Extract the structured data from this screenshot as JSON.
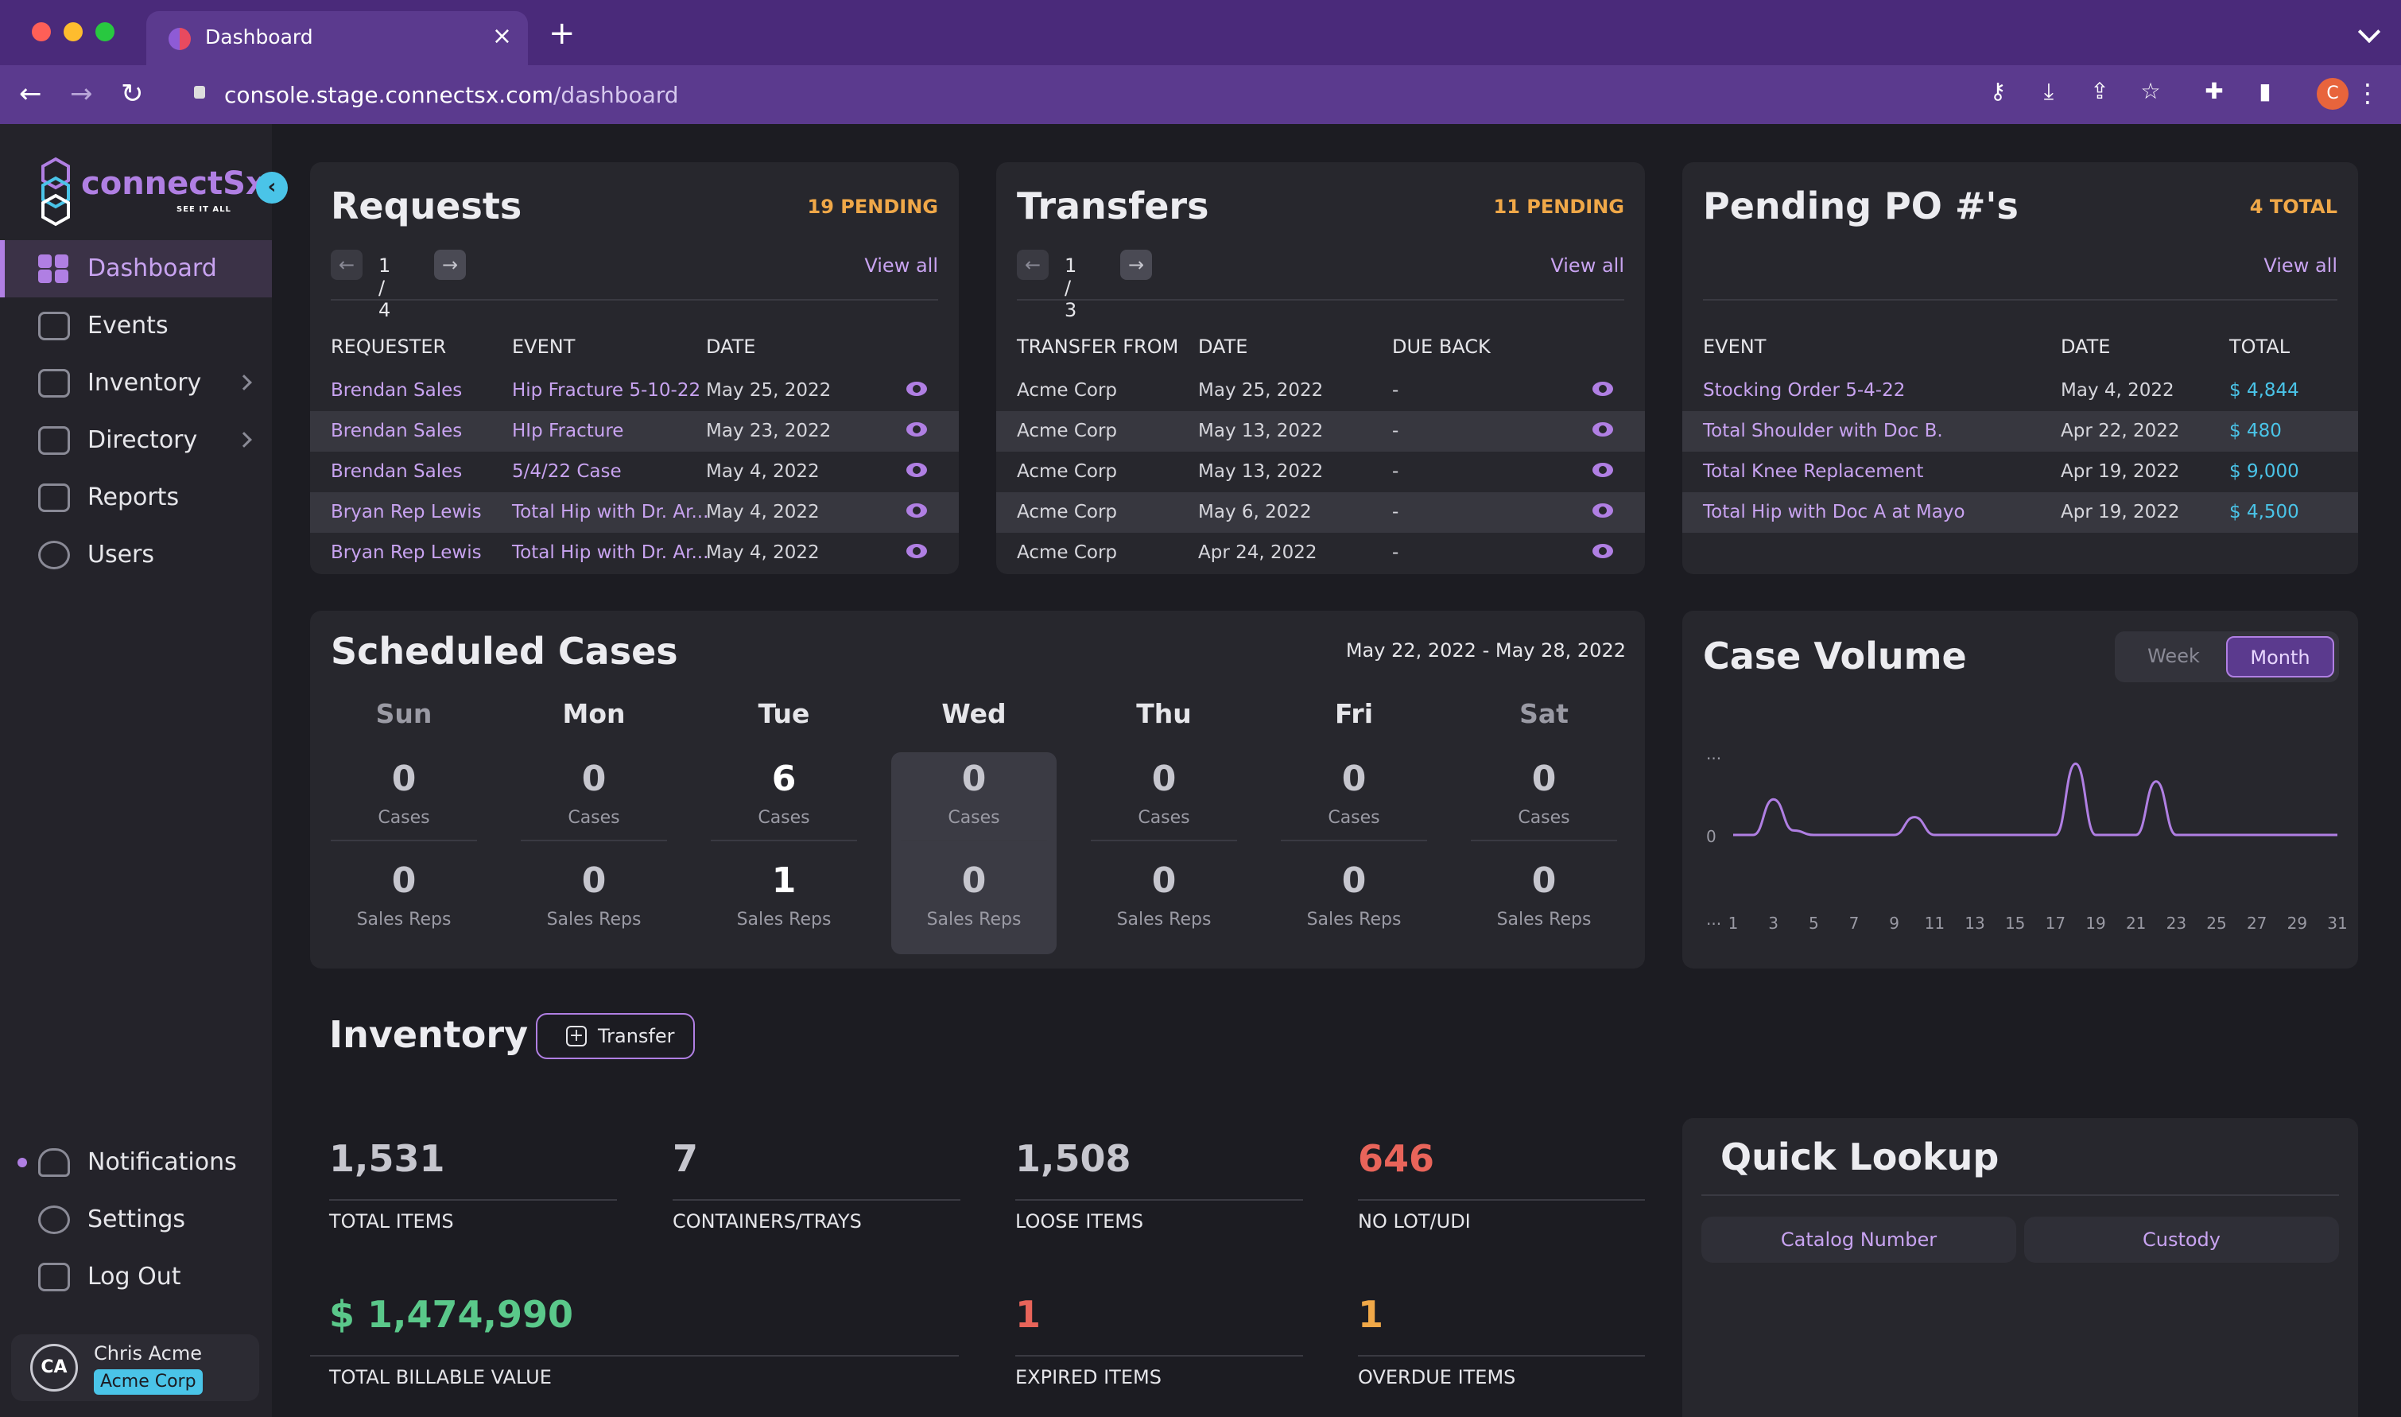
{
  "browser": {
    "tab_title": "Dashboard",
    "url_host": "console.stage.connectsx.com",
    "url_path": "/dashboard",
    "profile_initial": "C"
  },
  "sidebar": {
    "logo_text": "connectSx",
    "logo_tagline": "SEE IT ALL",
    "items": [
      {
        "label": "Dashboard",
        "icon": "grid-icon",
        "active": true
      },
      {
        "label": "Events",
        "icon": "calendar-icon"
      },
      {
        "label": "Inventory",
        "icon": "bag-icon",
        "expandable": true
      },
      {
        "label": "Directory",
        "icon": "book-icon",
        "expandable": true
      },
      {
        "label": "Reports",
        "icon": "download-icon"
      },
      {
        "label": "Users",
        "icon": "users-icon"
      }
    ],
    "bottom_items": [
      {
        "label": "Notifications",
        "icon": "bell-icon"
      },
      {
        "label": "Settings",
        "icon": "gear-icon"
      },
      {
        "label": "Log Out",
        "icon": "logout-icon"
      }
    ],
    "user": {
      "initials": "CA",
      "name": "Chris Acme",
      "org": "Acme Corp"
    }
  },
  "requests": {
    "title": "Requests",
    "badge": "19 PENDING",
    "pager": "1 / 4",
    "view_all": "View all",
    "headers": [
      "REQUESTER",
      "EVENT",
      "DATE"
    ],
    "rows": [
      {
        "requester": "Brendan Sales",
        "event": "Hip Fracture 5-10-22",
        "date": "May 25, 2022"
      },
      {
        "requester": "Brendan Sales",
        "event": "HIp Fracture",
        "date": "May 23, 2022"
      },
      {
        "requester": "Brendan Sales",
        "event": "5/4/22 Case",
        "date": "May 4, 2022"
      },
      {
        "requester": "Bryan Rep Lewis",
        "event": "Total Hip with Dr. Ar...",
        "date": "May 4, 2022"
      },
      {
        "requester": "Bryan Rep Lewis",
        "event": "Total Hip with Dr. Ar...",
        "date": "May 4, 2022"
      }
    ]
  },
  "transfers": {
    "title": "Transfers",
    "badge": "11 PENDING",
    "pager": "1 / 3",
    "view_all": "View all",
    "headers": [
      "TRANSFER FROM",
      "DATE",
      "DUE BACK"
    ],
    "rows": [
      {
        "from": "Acme Corp",
        "date": "May 25, 2022",
        "due": "-"
      },
      {
        "from": "Acme Corp",
        "date": "May 13, 2022",
        "due": "-"
      },
      {
        "from": "Acme Corp",
        "date": "May 13, 2022",
        "due": "-"
      },
      {
        "from": "Acme Corp",
        "date": "May 6, 2022",
        "due": "-"
      },
      {
        "from": "Acme Corp",
        "date": "Apr 24, 2022",
        "due": "-"
      }
    ]
  },
  "pending_po": {
    "title": "Pending PO #'s",
    "badge": "4 TOTAL",
    "view_all": "View all",
    "headers": [
      "EVENT",
      "DATE",
      "TOTAL"
    ],
    "rows": [
      {
        "event": "Stocking Order 5-4-22",
        "date": "May 4, 2022",
        "total": "$ 4,844"
      },
      {
        "event": "Total Shoulder with Doc B.",
        "date": "Apr 22, 2022",
        "total": "$ 480"
      },
      {
        "event": "Total Knee Replacement",
        "date": "Apr 19, 2022",
        "total": "$ 9,000"
      },
      {
        "event": "Total Hip with Doc A at Mayo",
        "date": "Apr 19, 2022",
        "total": "$ 4,500"
      }
    ]
  },
  "scheduled": {
    "title": "Scheduled Cases",
    "date_range": "May 22, 2022 - May 28, 2022",
    "cases_label": "Cases",
    "reps_label": "Sales Reps",
    "days": [
      {
        "name": "Sun",
        "cases": "0",
        "reps": "0"
      },
      {
        "name": "Mon",
        "cases": "0",
        "reps": "0"
      },
      {
        "name": "Tue",
        "cases": "6",
        "reps": "1"
      },
      {
        "name": "Wed",
        "cases": "0",
        "reps": "0",
        "today": true
      },
      {
        "name": "Thu",
        "cases": "0",
        "reps": "0"
      },
      {
        "name": "Fri",
        "cases": "0",
        "reps": "0"
      },
      {
        "name": "Sat",
        "cases": "0",
        "reps": "0"
      }
    ]
  },
  "case_volume": {
    "title": "Case Volume",
    "toggle": [
      "Week",
      "Month"
    ],
    "active_toggle": "Month",
    "y_tick_top": "...",
    "y_tick_zero": "0",
    "y_tick_bottom": "...",
    "chart_data": {
      "type": "line",
      "x": [
        1,
        3,
        5,
        7,
        9,
        11,
        13,
        15,
        17,
        19,
        21,
        23,
        25,
        27,
        29,
        31
      ],
      "x_tick_labels": [
        "1",
        "3",
        "5",
        "7",
        "9",
        "11",
        "13",
        "15",
        "17",
        "19",
        "21",
        "23",
        "25",
        "27",
        "29",
        "31"
      ],
      "series_points": [
        [
          1,
          0
        ],
        [
          2,
          0
        ],
        [
          3,
          0.8
        ],
        [
          4,
          0.1
        ],
        [
          5,
          0
        ],
        [
          6,
          0
        ],
        [
          7,
          0
        ],
        [
          8,
          0
        ],
        [
          9,
          0
        ],
        [
          10,
          0.4
        ],
        [
          11,
          0
        ],
        [
          12,
          0
        ],
        [
          13,
          0
        ],
        [
          14,
          0
        ],
        [
          15,
          0
        ],
        [
          16,
          0
        ],
        [
          17,
          0
        ],
        [
          18,
          1.6
        ],
        [
          19,
          0
        ],
        [
          20,
          0
        ],
        [
          21,
          0
        ],
        [
          22,
          1.2
        ],
        [
          23,
          0
        ],
        [
          24,
          0
        ],
        [
          25,
          0
        ],
        [
          26,
          0
        ],
        [
          27,
          0
        ],
        [
          28,
          0
        ],
        [
          29,
          0
        ],
        [
          30,
          0
        ],
        [
          31,
          0
        ]
      ],
      "color": "#b07fe3",
      "grid": false
    }
  },
  "inventory": {
    "title": "Inventory",
    "transfer_label": "Transfer",
    "stats": [
      {
        "value": "1,531",
        "label": "TOTAL ITEMS",
        "tone": "default"
      },
      {
        "value": "7",
        "label": "CONTAINERS/TRAYS",
        "tone": "default"
      },
      {
        "value": "1,508",
        "label": "LOOSE ITEMS",
        "tone": "default"
      },
      {
        "value": "646",
        "label": "NO LOT/UDI",
        "tone": "red"
      },
      {
        "value": "$ 1,474,990",
        "label": "TOTAL BILLABLE VALUE",
        "tone": "green"
      },
      {
        "value": "1",
        "label": "EXPIRED ITEMS",
        "tone": "red"
      },
      {
        "value": "1",
        "label": "OVERDUE ITEMS",
        "tone": "orange"
      }
    ]
  },
  "quick_lookup": {
    "title": "Quick Lookup",
    "tabs": [
      "Catalog Number",
      "Custody"
    ]
  },
  "colors": {
    "accent": "#b07fe3",
    "pending": "#f0a848",
    "money": "#4ac4e8",
    "alert": "#e8645a",
    "success": "#5ac88a"
  }
}
